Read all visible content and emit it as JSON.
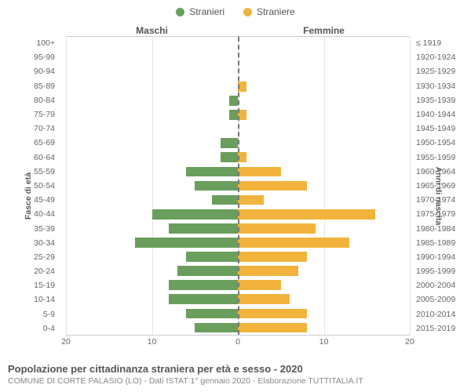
{
  "legend": {
    "male": {
      "label": "Stranieri",
      "color": "#6a9e5d"
    },
    "female": {
      "label": "Straniere",
      "color": "#f2b33d"
    }
  },
  "panel_titles": {
    "left": "Maschi",
    "right": "Femmine"
  },
  "axis_titles": {
    "left": "Fasce di età",
    "right": "Anni di nascita"
  },
  "chart": {
    "type": "population-pyramid",
    "xlim": 20,
    "xticks_left": [
      20,
      10,
      0
    ],
    "xticks_right": [
      10,
      20
    ],
    "bar_colors": {
      "male": "#6a9e5d",
      "female": "#f2b33d"
    },
    "grid_color": "#e6e6e6",
    "center_line_color": "#777777",
    "background_color": "#ffffff",
    "label_fontsize": 10.5,
    "rows": [
      {
        "age": "100+",
        "birth": "≤ 1919",
        "m": 0,
        "f": 0
      },
      {
        "age": "95-99",
        "birth": "1920-1924",
        "m": 0,
        "f": 0
      },
      {
        "age": "90-94",
        "birth": "1925-1929",
        "m": 0,
        "f": 0
      },
      {
        "age": "85-89",
        "birth": "1930-1934",
        "m": 0,
        "f": 1
      },
      {
        "age": "80-84",
        "birth": "1935-1939",
        "m": 1,
        "f": 0
      },
      {
        "age": "75-79",
        "birth": "1940-1944",
        "m": 1,
        "f": 1
      },
      {
        "age": "70-74",
        "birth": "1945-1949",
        "m": 0,
        "f": 0
      },
      {
        "age": "65-69",
        "birth": "1950-1954",
        "m": 2,
        "f": 0
      },
      {
        "age": "60-64",
        "birth": "1955-1959",
        "m": 2,
        "f": 1
      },
      {
        "age": "55-59",
        "birth": "1960-1964",
        "m": 6,
        "f": 5
      },
      {
        "age": "50-54",
        "birth": "1965-1969",
        "m": 5,
        "f": 8
      },
      {
        "age": "45-49",
        "birth": "1970-1974",
        "m": 3,
        "f": 3
      },
      {
        "age": "40-44",
        "birth": "1975-1979",
        "m": 10,
        "f": 16
      },
      {
        "age": "35-39",
        "birth": "1980-1984",
        "m": 8,
        "f": 9
      },
      {
        "age": "30-34",
        "birth": "1985-1989",
        "m": 12,
        "f": 13
      },
      {
        "age": "25-29",
        "birth": "1990-1994",
        "m": 6,
        "f": 8
      },
      {
        "age": "20-24",
        "birth": "1995-1999",
        "m": 7,
        "f": 7
      },
      {
        "age": "15-19",
        "birth": "2000-2004",
        "m": 8,
        "f": 5
      },
      {
        "age": "10-14",
        "birth": "2005-2009",
        "m": 8,
        "f": 6
      },
      {
        "age": "5-9",
        "birth": "2010-2014",
        "m": 6,
        "f": 8
      },
      {
        "age": "0-4",
        "birth": "2015-2019",
        "m": 5,
        "f": 8
      }
    ]
  },
  "footer": {
    "title": "Popolazione per cittadinanza straniera per età e sesso - 2020",
    "subtitle": "COMUNE DI CORTE PALASIO (LO) - Dati ISTAT 1° gennaio 2020 - Elaborazione TUTTITALIA.IT"
  }
}
